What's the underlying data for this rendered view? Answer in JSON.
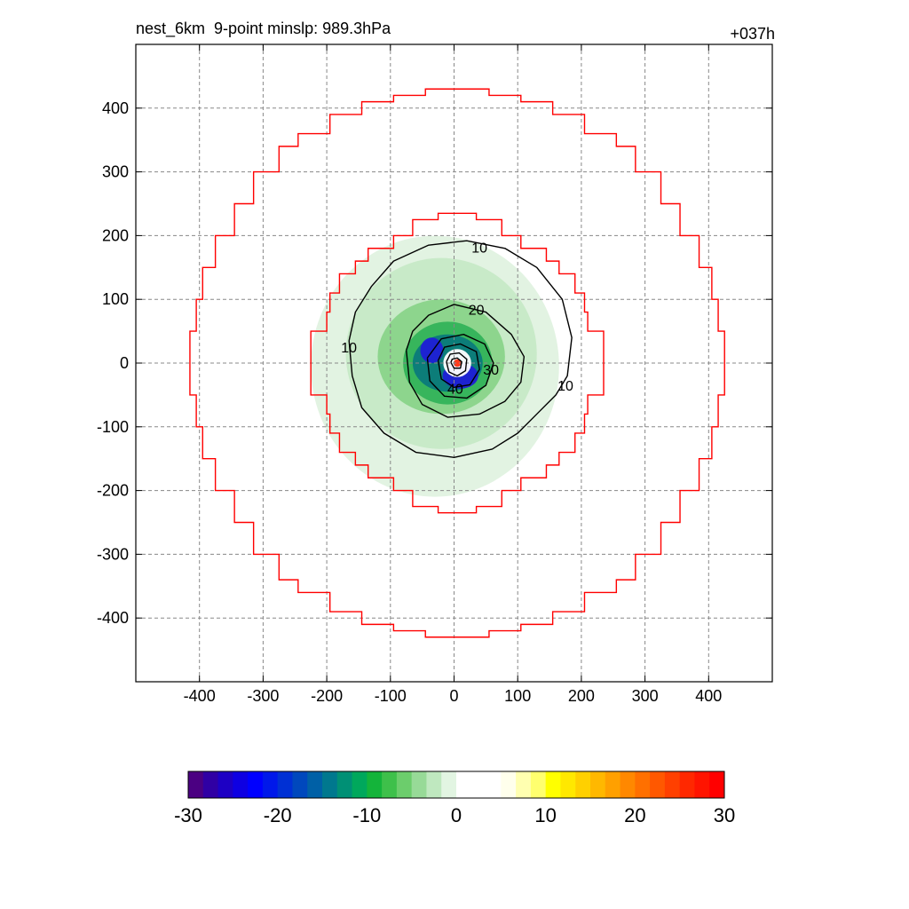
{
  "chart_data": {
    "type": "heatmap",
    "title_left": "nest_6km  9-point minslp: 989.3hPa",
    "title_right": "+037h",
    "xlabel": "",
    "ylabel": "",
    "xlim": [
      -500,
      500
    ],
    "ylim": [
      -500,
      500
    ],
    "x_ticks": [
      -400,
      -300,
      -200,
      -100,
      0,
      100,
      200,
      300,
      400
    ],
    "y_ticks": [
      400,
      300,
      200,
      100,
      0,
      -100,
      -200,
      -300,
      -400
    ],
    "grid": true,
    "center": [
      5,
      0
    ],
    "red_outline_boxes": [
      {
        "name": "outer",
        "profile": [
          [
            420,
            50
          ],
          [
            410,
            100
          ],
          [
            400,
            150
          ],
          [
            380,
            200
          ],
          [
            350,
            250
          ],
          [
            320,
            300
          ],
          [
            280,
            340
          ],
          [
            250,
            360
          ],
          [
            200,
            390
          ],
          [
            150,
            410
          ],
          [
            100,
            420
          ],
          [
            50,
            430
          ],
          [
            0,
            430
          ]
        ]
      },
      {
        "name": "inner",
        "profile": [
          [
            230,
            10
          ],
          [
            230,
            50
          ],
          [
            205,
            80
          ],
          [
            200,
            110
          ],
          [
            185,
            140
          ],
          [
            160,
            160
          ],
          [
            140,
            180
          ],
          [
            100,
            200
          ],
          [
            70,
            225
          ],
          [
            30,
            235
          ],
          [
            0,
            235
          ]
        ]
      }
    ],
    "contours": [
      {
        "label": "10",
        "points": [
          [
            -165,
            35
          ],
          [
            -160,
            -20
          ],
          [
            -145,
            -70
          ],
          [
            -110,
            -110
          ],
          [
            -60,
            -140
          ],
          [
            0,
            -148
          ],
          [
            60,
            -135
          ],
          [
            100,
            -110
          ],
          [
            130,
            -80
          ],
          [
            160,
            -50
          ],
          [
            178,
            -20
          ],
          [
            185,
            40
          ],
          [
            170,
            100
          ],
          [
            130,
            150
          ],
          [
            80,
            180
          ],
          [
            20,
            192
          ],
          [
            -40,
            185
          ],
          [
            -95,
            160
          ],
          [
            -130,
            120
          ],
          [
            -155,
            80
          ],
          [
            -165,
            35
          ]
        ],
        "label_at": [
          [
            -165,
            25
          ],
          [
            175,
            -35
          ],
          [
            40,
            182
          ]
        ]
      },
      {
        "label": "20",
        "points": [
          [
            -75,
            20
          ],
          [
            -70,
            -30
          ],
          [
            -50,
            -65
          ],
          [
            -10,
            -85
          ],
          [
            40,
            -80
          ],
          [
            80,
            -60
          ],
          [
            105,
            -30
          ],
          [
            110,
            10
          ],
          [
            90,
            45
          ],
          [
            50,
            80
          ],
          [
            0,
            92
          ],
          [
            -40,
            75
          ],
          [
            -65,
            50
          ],
          [
            -75,
            20
          ]
        ],
        "label_at": [
          [
            35,
            84
          ]
        ]
      },
      {
        "label": "30",
        "points": [
          [
            -42,
            8
          ],
          [
            -38,
            -28
          ],
          [
            -15,
            -52
          ],
          [
            20,
            -55
          ],
          [
            50,
            -35
          ],
          [
            62,
            0
          ],
          [
            48,
            30
          ],
          [
            15,
            45
          ],
          [
            -20,
            38
          ],
          [
            -42,
            8
          ]
        ],
        "label_at": [
          [
            58,
            -10
          ]
        ]
      },
      {
        "label": "40",
        "points": [
          [
            -25,
            4
          ],
          [
            -20,
            -25
          ],
          [
            0,
            -38
          ],
          [
            25,
            -34
          ],
          [
            40,
            -10
          ],
          [
            35,
            18
          ],
          [
            10,
            30
          ],
          [
            -15,
            25
          ],
          [
            -25,
            4
          ]
        ],
        "label_at": [
          [
            2,
            -40
          ]
        ]
      },
      {
        "label": "",
        "points": [
          [
            -12,
            2
          ],
          [
            -8,
            -14
          ],
          [
            5,
            -20
          ],
          [
            18,
            -12
          ],
          [
            20,
            6
          ],
          [
            8,
            16
          ],
          [
            -6,
            14
          ],
          [
            -12,
            2
          ]
        ]
      },
      {
        "label": "",
        "points": [
          [
            -5,
            1
          ],
          [
            0,
            -8
          ],
          [
            10,
            -8
          ],
          [
            12,
            2
          ],
          [
            5,
            8
          ],
          [
            -3,
            6
          ],
          [
            -5,
            1
          ]
        ]
      }
    ],
    "color_regions": [
      {
        "color": "#e0f2e0",
        "center": [
          -30,
          -5
        ],
        "radii": [
          195,
          205
        ]
      },
      {
        "color": "#c6e9c6",
        "center": [
          -20,
          15
        ],
        "radii": [
          150,
          150
        ]
      },
      {
        "color": "#8ad48a",
        "center": [
          -20,
          10
        ],
        "radii": [
          100,
          90
        ]
      },
      {
        "color": "#33b35a",
        "center": [
          -10,
          0
        ],
        "radii": [
          70,
          65
        ]
      },
      {
        "color": "#0a7a7a",
        "center": [
          -10,
          0
        ],
        "radii": [
          55,
          45
        ]
      },
      {
        "color": "#1f1fd6",
        "center": [
          10,
          -20
        ],
        "radii": [
          28,
          20
        ]
      },
      {
        "color": "#1f1fd6",
        "center": [
          -35,
          20
        ],
        "radii": [
          18,
          20
        ]
      },
      {
        "color": "#ffffff",
        "center": [
          5,
          0
        ],
        "radii": [
          22,
          22
        ]
      },
      {
        "color": "#ff3010",
        "center": [
          5,
          0
        ],
        "radii": [
          6,
          6
        ]
      }
    ],
    "colorbar": {
      "min": -30,
      "max": 30,
      "ticks": [
        -30,
        -20,
        -10,
        0,
        10,
        20,
        30
      ],
      "colors": [
        "#4b0082",
        "#3000a4",
        "#1d00c4",
        "#0e00e2",
        "#0000ff",
        "#0018ea",
        "#0030d4",
        "#0048bd",
        "#0060a6",
        "#00788e",
        "#009075",
        "#00a85c",
        "#14b43a",
        "#3ec04a",
        "#6ccd6c",
        "#97da97",
        "#bfe8bf",
        "#e2f5e2",
        "#ffffff",
        "#ffffff",
        "#ffffff",
        "#ffffec",
        "#ffffb0",
        "#ffff6e",
        "#ffff00",
        "#ffe800",
        "#ffd000",
        "#ffb800",
        "#ffa000",
        "#ff8800",
        "#ff7000",
        "#ff5800",
        "#ff4000",
        "#ff2800",
        "#ff1400",
        "#ff0000"
      ]
    }
  }
}
